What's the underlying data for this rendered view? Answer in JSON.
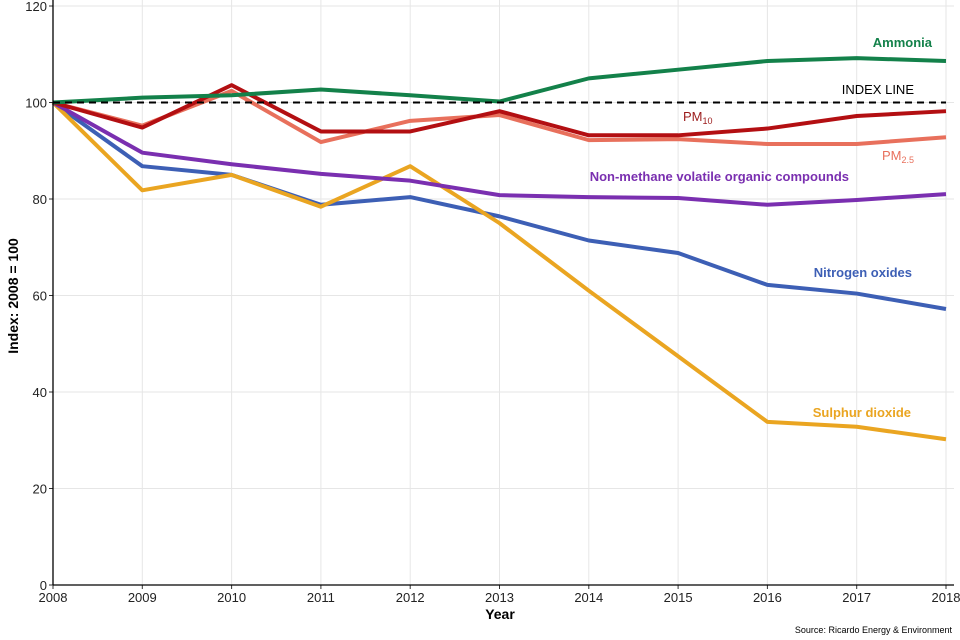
{
  "chart_data": {
    "type": "line",
    "xlabel": "Year",
    "ylabel": "Index: 2008 = 100",
    "xlim": [
      2008,
      2018
    ],
    "ylim": [
      0,
      120
    ],
    "yticks": [
      0,
      20,
      40,
      60,
      80,
      100,
      120
    ],
    "x": [
      2008,
      2009,
      2010,
      2011,
      2012,
      2013,
      2014,
      2015,
      2016,
      2017,
      2018
    ],
    "grid": true,
    "legend": "none (direct labels)",
    "reference_line": {
      "label": "INDEX LINE",
      "value": 100,
      "color": "#000000"
    },
    "series": [
      {
        "name": "Ammonia",
        "color": "#13814a",
        "values": [
          100,
          101,
          101.5,
          102.7,
          101.5,
          100.2,
          105,
          106.8,
          108.6,
          109.2,
          108.6
        ]
      },
      {
        "name": "PM",
        "sub": "10",
        "color": "#b30f12",
        "values": [
          100,
          94.8,
          103.6,
          94,
          94,
          98.2,
          93.2,
          93.2,
          94.6,
          97.2,
          98.2
        ]
      },
      {
        "name": "PM",
        "sub": "2.5",
        "color": "#e8705c",
        "values": [
          100,
          95.2,
          102.4,
          91.8,
          96.2,
          97.4,
          92.2,
          92.4,
          91.4,
          91.4,
          92.8
        ]
      },
      {
        "name": "Non-methane volatile organic compounds",
        "color": "#7a2fb0",
        "values": [
          100,
          89.6,
          87.2,
          85.2,
          83.8,
          80.8,
          80.4,
          80.2,
          78.8,
          79.8,
          81
        ]
      },
      {
        "name": "Nitrogen oxides",
        "color": "#3d5fb5",
        "values": [
          100,
          86.8,
          85,
          78.8,
          80.4,
          76.4,
          71.4,
          68.8,
          62.2,
          60.4,
          57.2
        ]
      },
      {
        "name": "Sulphur dioxide",
        "color": "#eaa521",
        "values": [
          100,
          81.8,
          85,
          78.4,
          86.8,
          75,
          61,
          47.4,
          33.8,
          32.8,
          30.2
        ]
      }
    ],
    "source": "Source: Ricardo Energy & Environment"
  }
}
